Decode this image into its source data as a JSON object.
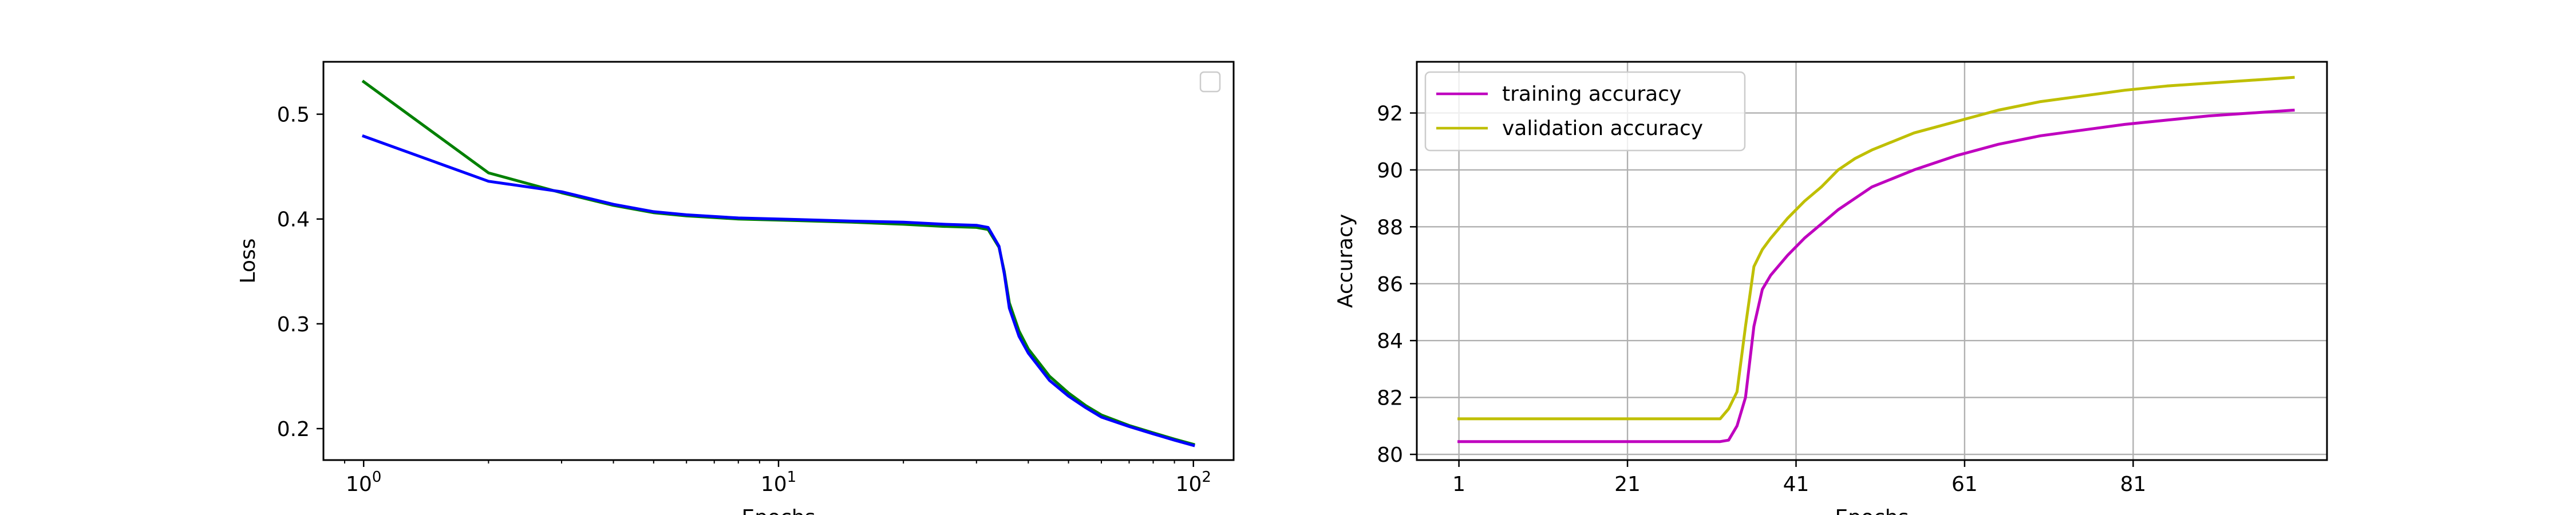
{
  "chart_data": [
    {
      "type": "line",
      "xscale": "log",
      "xlim": [
        0.8,
        125
      ],
      "ylim": [
        0.17,
        0.55
      ],
      "xlabel": "Epochs",
      "ylabel": "Loss",
      "xticks": [
        1,
        10,
        100
      ],
      "xtick_labels": [
        "10",
        "10",
        "10"
      ],
      "xtick_exps": [
        "0",
        "1",
        "2"
      ],
      "yticks": [
        0.2,
        0.3,
        0.4,
        0.5
      ],
      "ytick_labels": [
        "0.2",
        "0.3",
        "0.4",
        "0.5"
      ],
      "grid": false,
      "legend": "top-right (empty)",
      "series": [
        {
          "color": "#008000",
          "x": [
            1,
            2,
            3,
            4,
            5,
            6,
            8,
            10,
            15,
            20,
            25,
            30,
            32,
            34,
            35,
            36,
            38,
            40,
            45,
            50,
            55,
            60,
            70,
            80,
            90,
            100
          ],
          "y": [
            0.531,
            0.444,
            0.425,
            0.413,
            0.406,
            0.403,
            0.4,
            0.399,
            0.397,
            0.395,
            0.393,
            0.392,
            0.39,
            0.373,
            0.35,
            0.32,
            0.293,
            0.276,
            0.25,
            0.234,
            0.222,
            0.213,
            0.203,
            0.196,
            0.19,
            0.185
          ]
        },
        {
          "color": "#0000ff",
          "x": [
            1,
            2,
            3,
            4,
            5,
            6,
            8,
            10,
            15,
            20,
            25,
            30,
            32,
            34,
            35,
            36,
            38,
            40,
            45,
            50,
            55,
            60,
            70,
            80,
            90,
            100
          ],
          "y": [
            0.479,
            0.436,
            0.426,
            0.414,
            0.407,
            0.404,
            0.401,
            0.4,
            0.398,
            0.397,
            0.395,
            0.394,
            0.392,
            0.374,
            0.348,
            0.315,
            0.288,
            0.272,
            0.246,
            0.231,
            0.22,
            0.211,
            0.202,
            0.195,
            0.189,
            0.184
          ]
        }
      ]
    },
    {
      "type": "line",
      "xlim": [
        -4,
        104
      ],
      "ylim": [
        79.8,
        93.8
      ],
      "xlabel": "Epochs",
      "ylabel": "Accuracy",
      "xticks": [
        1,
        21,
        41,
        61,
        81
      ],
      "xtick_labels": [
        "1",
        "21",
        "41",
        "61",
        "81"
      ],
      "yticks": [
        80,
        82,
        84,
        86,
        88,
        90,
        92
      ],
      "ytick_labels": [
        "80",
        "82",
        "84",
        "86",
        "88",
        "90",
        "92"
      ],
      "grid": true,
      "legend": "top-left",
      "series": [
        {
          "name": "training accuracy",
          "color": "#bf00bf",
          "x": [
            1,
            10,
            20,
            30,
            32,
            33,
            34,
            35,
            36,
            37,
            38,
            40,
            42,
            44,
            46,
            48,
            50,
            55,
            60,
            65,
            70,
            75,
            80,
            85,
            90,
            95,
            100
          ],
          "y": [
            80.45,
            80.45,
            80.45,
            80.45,
            80.45,
            80.5,
            81.0,
            82.0,
            84.5,
            85.8,
            86.3,
            87.0,
            87.6,
            88.1,
            88.6,
            89.0,
            89.4,
            90.0,
            90.5,
            90.9,
            91.2,
            91.4,
            91.6,
            91.75,
            91.9,
            92.0,
            92.1
          ]
        },
        {
          "name": "validation accuracy",
          "color": "#bfbf00",
          "x": [
            1,
            10,
            20,
            30,
            32,
            33,
            34,
            35,
            36,
            37,
            38,
            40,
            42,
            44,
            46,
            48,
            50,
            55,
            60,
            65,
            70,
            75,
            80,
            85,
            90,
            95,
            100
          ],
          "y": [
            81.25,
            81.25,
            81.25,
            81.25,
            81.25,
            81.6,
            82.2,
            84.5,
            86.6,
            87.2,
            87.6,
            88.3,
            88.9,
            89.4,
            90.0,
            90.4,
            90.7,
            91.3,
            91.7,
            92.1,
            92.4,
            92.6,
            92.8,
            92.95,
            93.05,
            93.15,
            93.25
          ]
        }
      ]
    }
  ]
}
